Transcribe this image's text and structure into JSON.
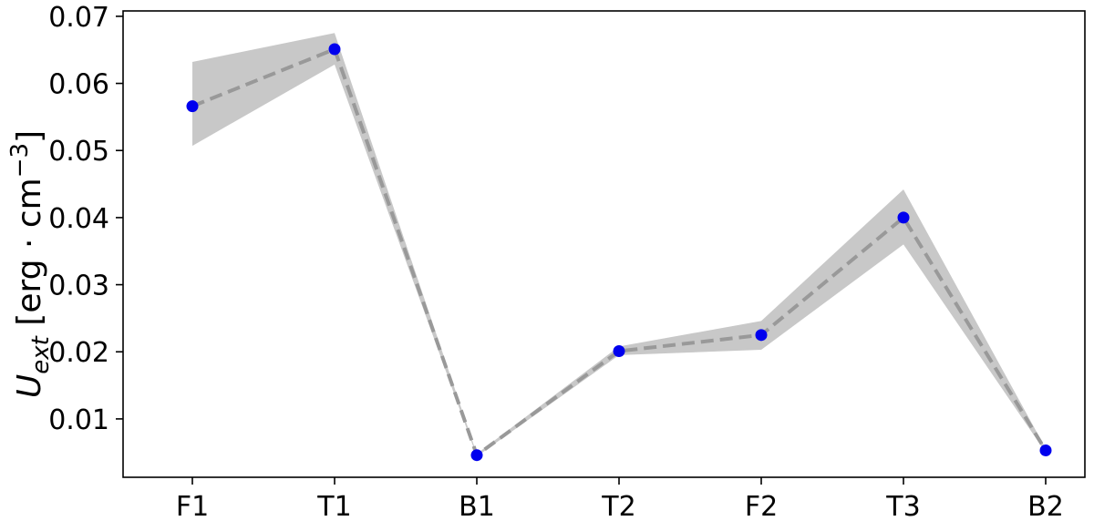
{
  "chart_data": {
    "type": "line",
    "title": "",
    "xlabel": "",
    "ylabel": {
      "base": "U",
      "subscript": "ext",
      "unit_prefix": " [erg · cm",
      "unit_exponent": "−3",
      "unit_suffix": "]"
    },
    "categories": [
      "F1",
      "T1",
      "B1",
      "T2",
      "F2",
      "T3",
      "B2"
    ],
    "series": [
      {
        "values": [
          0.0566,
          0.0651,
          0.0046,
          0.0201,
          0.0225,
          0.04,
          0.0053
        ],
        "lower": [
          0.0507,
          0.0628,
          0.0044,
          0.0195,
          0.0203,
          0.036,
          0.005
        ],
        "upper": [
          0.0632,
          0.0675,
          0.0048,
          0.0208,
          0.0246,
          0.0442,
          0.0056
        ]
      }
    ],
    "yticks": [
      0.01,
      0.02,
      0.03,
      0.04,
      0.05,
      0.06,
      0.07
    ],
    "ytick_labels": [
      "0.01",
      "0.02",
      "0.03",
      "0.04",
      "0.05",
      "0.06",
      "0.07"
    ],
    "ylim": [
      0.0013,
      0.0708
    ],
    "grid": false,
    "colors": {
      "marker": "#0000ee",
      "line": "#999999",
      "band": "#c8c8c8",
      "axes": "#000000"
    }
  }
}
